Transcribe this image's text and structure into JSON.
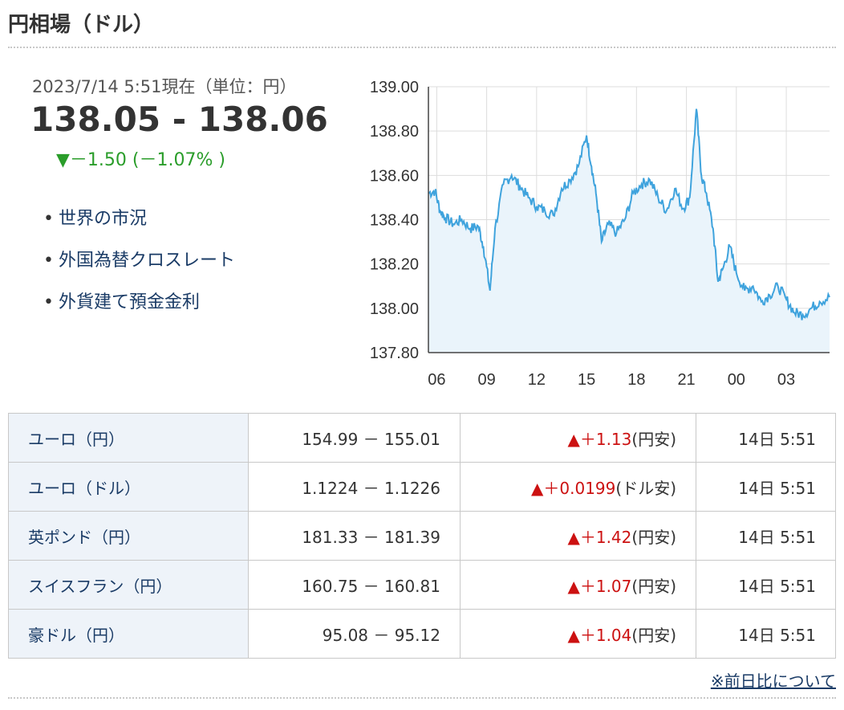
{
  "header": {
    "title": "円相場（ドル）"
  },
  "quote": {
    "timestamp": "2023/7/14 5:51現在（単位：円）",
    "rate": "138.05 - 138.06",
    "change": "▼－1.50 (－1.07% )"
  },
  "links": [
    {
      "label": "世界の市況"
    },
    {
      "label": "外国為替クロスレート"
    },
    {
      "label": "外貨建て預金金利"
    }
  ],
  "chart_data": {
    "type": "line",
    "x_ticks": [
      "06",
      "09",
      "12",
      "15",
      "18",
      "21",
      "00",
      "03"
    ],
    "y_ticks": [
      "139.00",
      "138.80",
      "138.60",
      "138.40",
      "138.20",
      "138.00",
      "137.80"
    ],
    "ylim": [
      137.8,
      139.0
    ],
    "x_range": [
      5.5,
      29.6
    ],
    "grid": true,
    "colors": {
      "line": "#3fa3dd",
      "fill": "#eaf4fb",
      "grid": "#dddddd"
    },
    "x": [
      5.5,
      5.9,
      6.2,
      6.5,
      7.0,
      7.5,
      8.0,
      8.5,
      8.8,
      9.2,
      9.5,
      10.0,
      10.5,
      11.0,
      11.5,
      12.0,
      12.5,
      13.0,
      13.5,
      14.0,
      14.5,
      15.0,
      15.3,
      15.6,
      15.9,
      16.3,
      16.8,
      17.3,
      17.8,
      18.3,
      18.8,
      19.3,
      19.8,
      20.3,
      20.8,
      21.2,
      21.6,
      21.9,
      22.2,
      22.6,
      22.9,
      23.2,
      23.6,
      24.0,
      24.5,
      25.0,
      25.5,
      26.0,
      26.5,
      27.0,
      27.5,
      28.0,
      28.5,
      29.0,
      29.6
    ],
    "values": [
      138.52,
      138.53,
      138.44,
      138.41,
      138.38,
      138.4,
      138.36,
      138.37,
      138.28,
      138.08,
      138.36,
      138.56,
      138.6,
      138.55,
      138.5,
      138.46,
      138.44,
      138.42,
      138.54,
      138.58,
      138.64,
      138.78,
      138.64,
      138.5,
      138.3,
      138.38,
      138.34,
      138.4,
      138.52,
      138.56,
      138.58,
      138.5,
      138.44,
      138.54,
      138.45,
      138.5,
      138.9,
      138.6,
      138.52,
      138.36,
      138.12,
      138.18,
      138.28,
      138.16,
      138.08,
      138.1,
      138.03,
      138.06,
      138.1,
      138.04,
      137.98,
      137.97,
      138.0,
      138.03,
      138.05
    ]
  },
  "table": {
    "rows": [
      {
        "name": "ユーロ（円）",
        "bidask": "154.99 － 155.01",
        "change": "▲＋1.13",
        "suffix": "(円安)",
        "time": "14日 5:51"
      },
      {
        "name": "ユーロ（ドル）",
        "bidask": "1.1224 － 1.1226",
        "change": "▲＋0.0199",
        "suffix": "(ドル安)",
        "time": "14日 5:51"
      },
      {
        "name": "英ポンド（円）",
        "bidask": "181.33 － 181.39",
        "change": "▲＋1.42",
        "suffix": "(円安)",
        "time": "14日 5:51"
      },
      {
        "name": "スイスフラン（円）",
        "bidask": "160.75 － 160.81",
        "change": "▲＋1.07",
        "suffix": "(円安)",
        "time": "14日 5:51"
      },
      {
        "name": "豪ドル（円）",
        "bidask": "95.08 － 95.12",
        "change": "▲＋1.04",
        "suffix": "(円安)",
        "time": "14日 5:51"
      }
    ]
  },
  "footer": {
    "note": "※前日比について"
  }
}
